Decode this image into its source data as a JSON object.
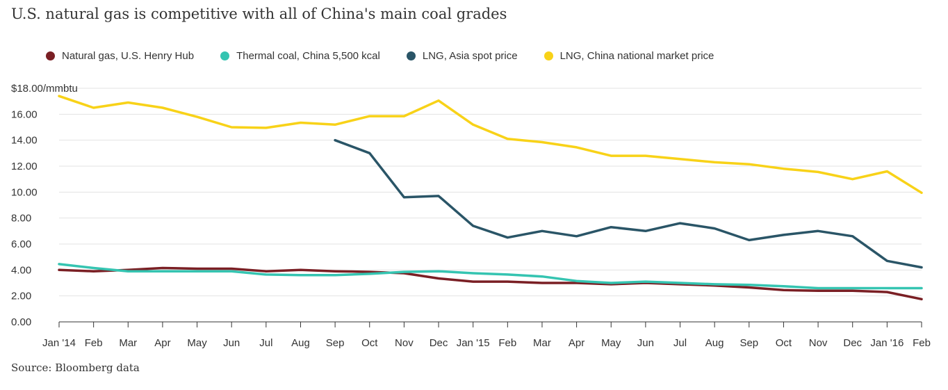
{
  "title": "U.S. natural gas is competitive with all of China's main coal grades",
  "source": "Source: Bloomberg data",
  "chart_data": {
    "type": "line",
    "title": "U.S. natural gas is competitive with all of China's main coal grades",
    "ylabel": "$18.00/mmbtu",
    "ylim": [
      0,
      18
    ],
    "yticks": [
      0,
      2,
      4,
      6,
      8,
      10,
      12,
      14,
      16,
      18
    ],
    "ytick_labels": [
      "0.00",
      "2.00",
      "4.00",
      "6.00",
      "8.00",
      "10.00",
      "12.00",
      "14.00",
      "16.00",
      "$18.00/mmbtu"
    ],
    "categories": [
      "Jan '14",
      "Feb",
      "Mar",
      "Apr",
      "May",
      "Jun",
      "Jul",
      "Aug",
      "Sep",
      "Oct",
      "Nov",
      "Dec",
      "Jan '15",
      "Feb",
      "Mar",
      "Apr",
      "May",
      "Jun",
      "Jul",
      "Aug",
      "Sep",
      "Oct",
      "Nov",
      "Dec",
      "Jan '16",
      "Feb"
    ],
    "grid": true,
    "legend_position": "top",
    "series": [
      {
        "name": "Natural gas, U.S. Henry Hub",
        "color": "#7a1f24",
        "values": [
          4.0,
          3.9,
          4.0,
          4.15,
          4.1,
          4.1,
          3.9,
          4.0,
          3.9,
          3.85,
          3.75,
          3.35,
          3.1,
          3.1,
          3.0,
          3.0,
          2.9,
          3.0,
          2.9,
          2.8,
          2.65,
          2.45,
          2.4,
          2.4,
          2.3,
          1.75
        ]
      },
      {
        "name": "Thermal coal, China 5,500 kcal",
        "color": "#35c4b1",
        "values": [
          4.45,
          4.15,
          3.9,
          3.9,
          3.9,
          3.9,
          3.65,
          3.6,
          3.6,
          3.7,
          3.85,
          3.9,
          3.75,
          3.65,
          3.5,
          3.15,
          3.0,
          3.1,
          3.0,
          2.9,
          2.85,
          2.75,
          2.6,
          2.6,
          2.6,
          2.6
        ]
      },
      {
        "name": "LNG, Asia spot price",
        "color": "#2a5567",
        "values": [
          null,
          null,
          null,
          null,
          null,
          null,
          null,
          null,
          14.0,
          13.0,
          9.6,
          9.7,
          7.4,
          6.5,
          7.0,
          6.6,
          7.3,
          7.0,
          7.6,
          7.2,
          6.3,
          6.7,
          7.0,
          6.6,
          4.7,
          4.2
        ]
      },
      {
        "name": "LNG, China national market price",
        "color": "#f8d218",
        "values": [
          17.4,
          16.5,
          16.9,
          16.5,
          15.8,
          15.0,
          14.95,
          15.35,
          15.2,
          15.85,
          15.85,
          17.05,
          15.2,
          14.1,
          13.85,
          13.45,
          12.8,
          12.8,
          12.55,
          12.3,
          12.15,
          11.8,
          11.55,
          11.0,
          11.6,
          9.95
        ]
      }
    ]
  }
}
